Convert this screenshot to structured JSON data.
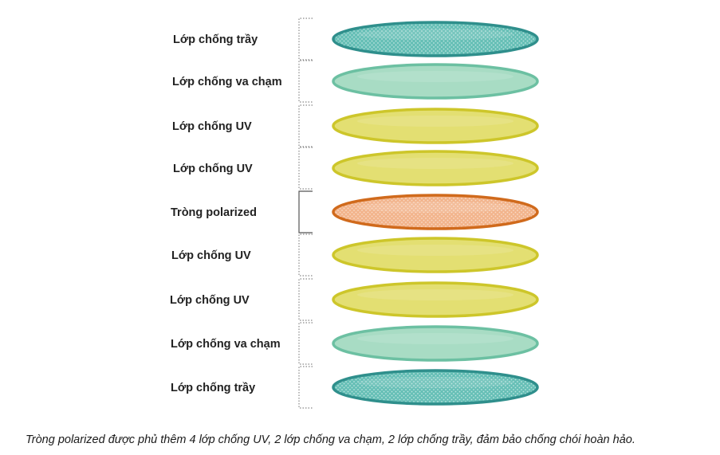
{
  "colors": {
    "scratch_fill": "#66bfb6",
    "scratch_stroke": "#2f8f8c",
    "impact_fill": "#a8dcc4",
    "impact_stroke": "#6cc0a2",
    "uv_fill": "#e3df72",
    "uv_stroke": "#cdc62a",
    "polarized_fill": "#f2b48c",
    "polarized_stroke": "#d06a1c",
    "bracket": "#888888",
    "label": "#222222"
  },
  "layers": [
    {
      "label": "Lớp chống trầy",
      "kind": "scratch",
      "icon": "dotted-bracket"
    },
    {
      "label": "Lớp chống va chạm",
      "kind": "impact",
      "icon": "dotted-bracket"
    },
    {
      "label": "Lớp chống UV",
      "kind": "uv",
      "icon": "dotted-bracket"
    },
    {
      "label": "Lớp chống UV",
      "kind": "uv",
      "icon": "dotted-bracket"
    },
    {
      "label": "Tròng polarized",
      "kind": "polarized",
      "icon": "solid-bracket"
    },
    {
      "label": "Lớp chống UV",
      "kind": "uv",
      "icon": "dotted-bracket"
    },
    {
      "label": "Lớp chống UV",
      "kind": "uv",
      "icon": "dotted-bracket"
    },
    {
      "label": "Lớp chống va chạm",
      "kind": "impact",
      "icon": "dotted-bracket"
    },
    {
      "label": "Lớp chống trầy",
      "kind": "scratch",
      "icon": "dotted-bracket"
    }
  ],
  "caption": "Tròng polarized được phủ thêm 4 lớp chống UV, 2 lớp chống va chạm, 2 lớp chống trầy, đảm bảo chống chói hoàn hảo."
}
